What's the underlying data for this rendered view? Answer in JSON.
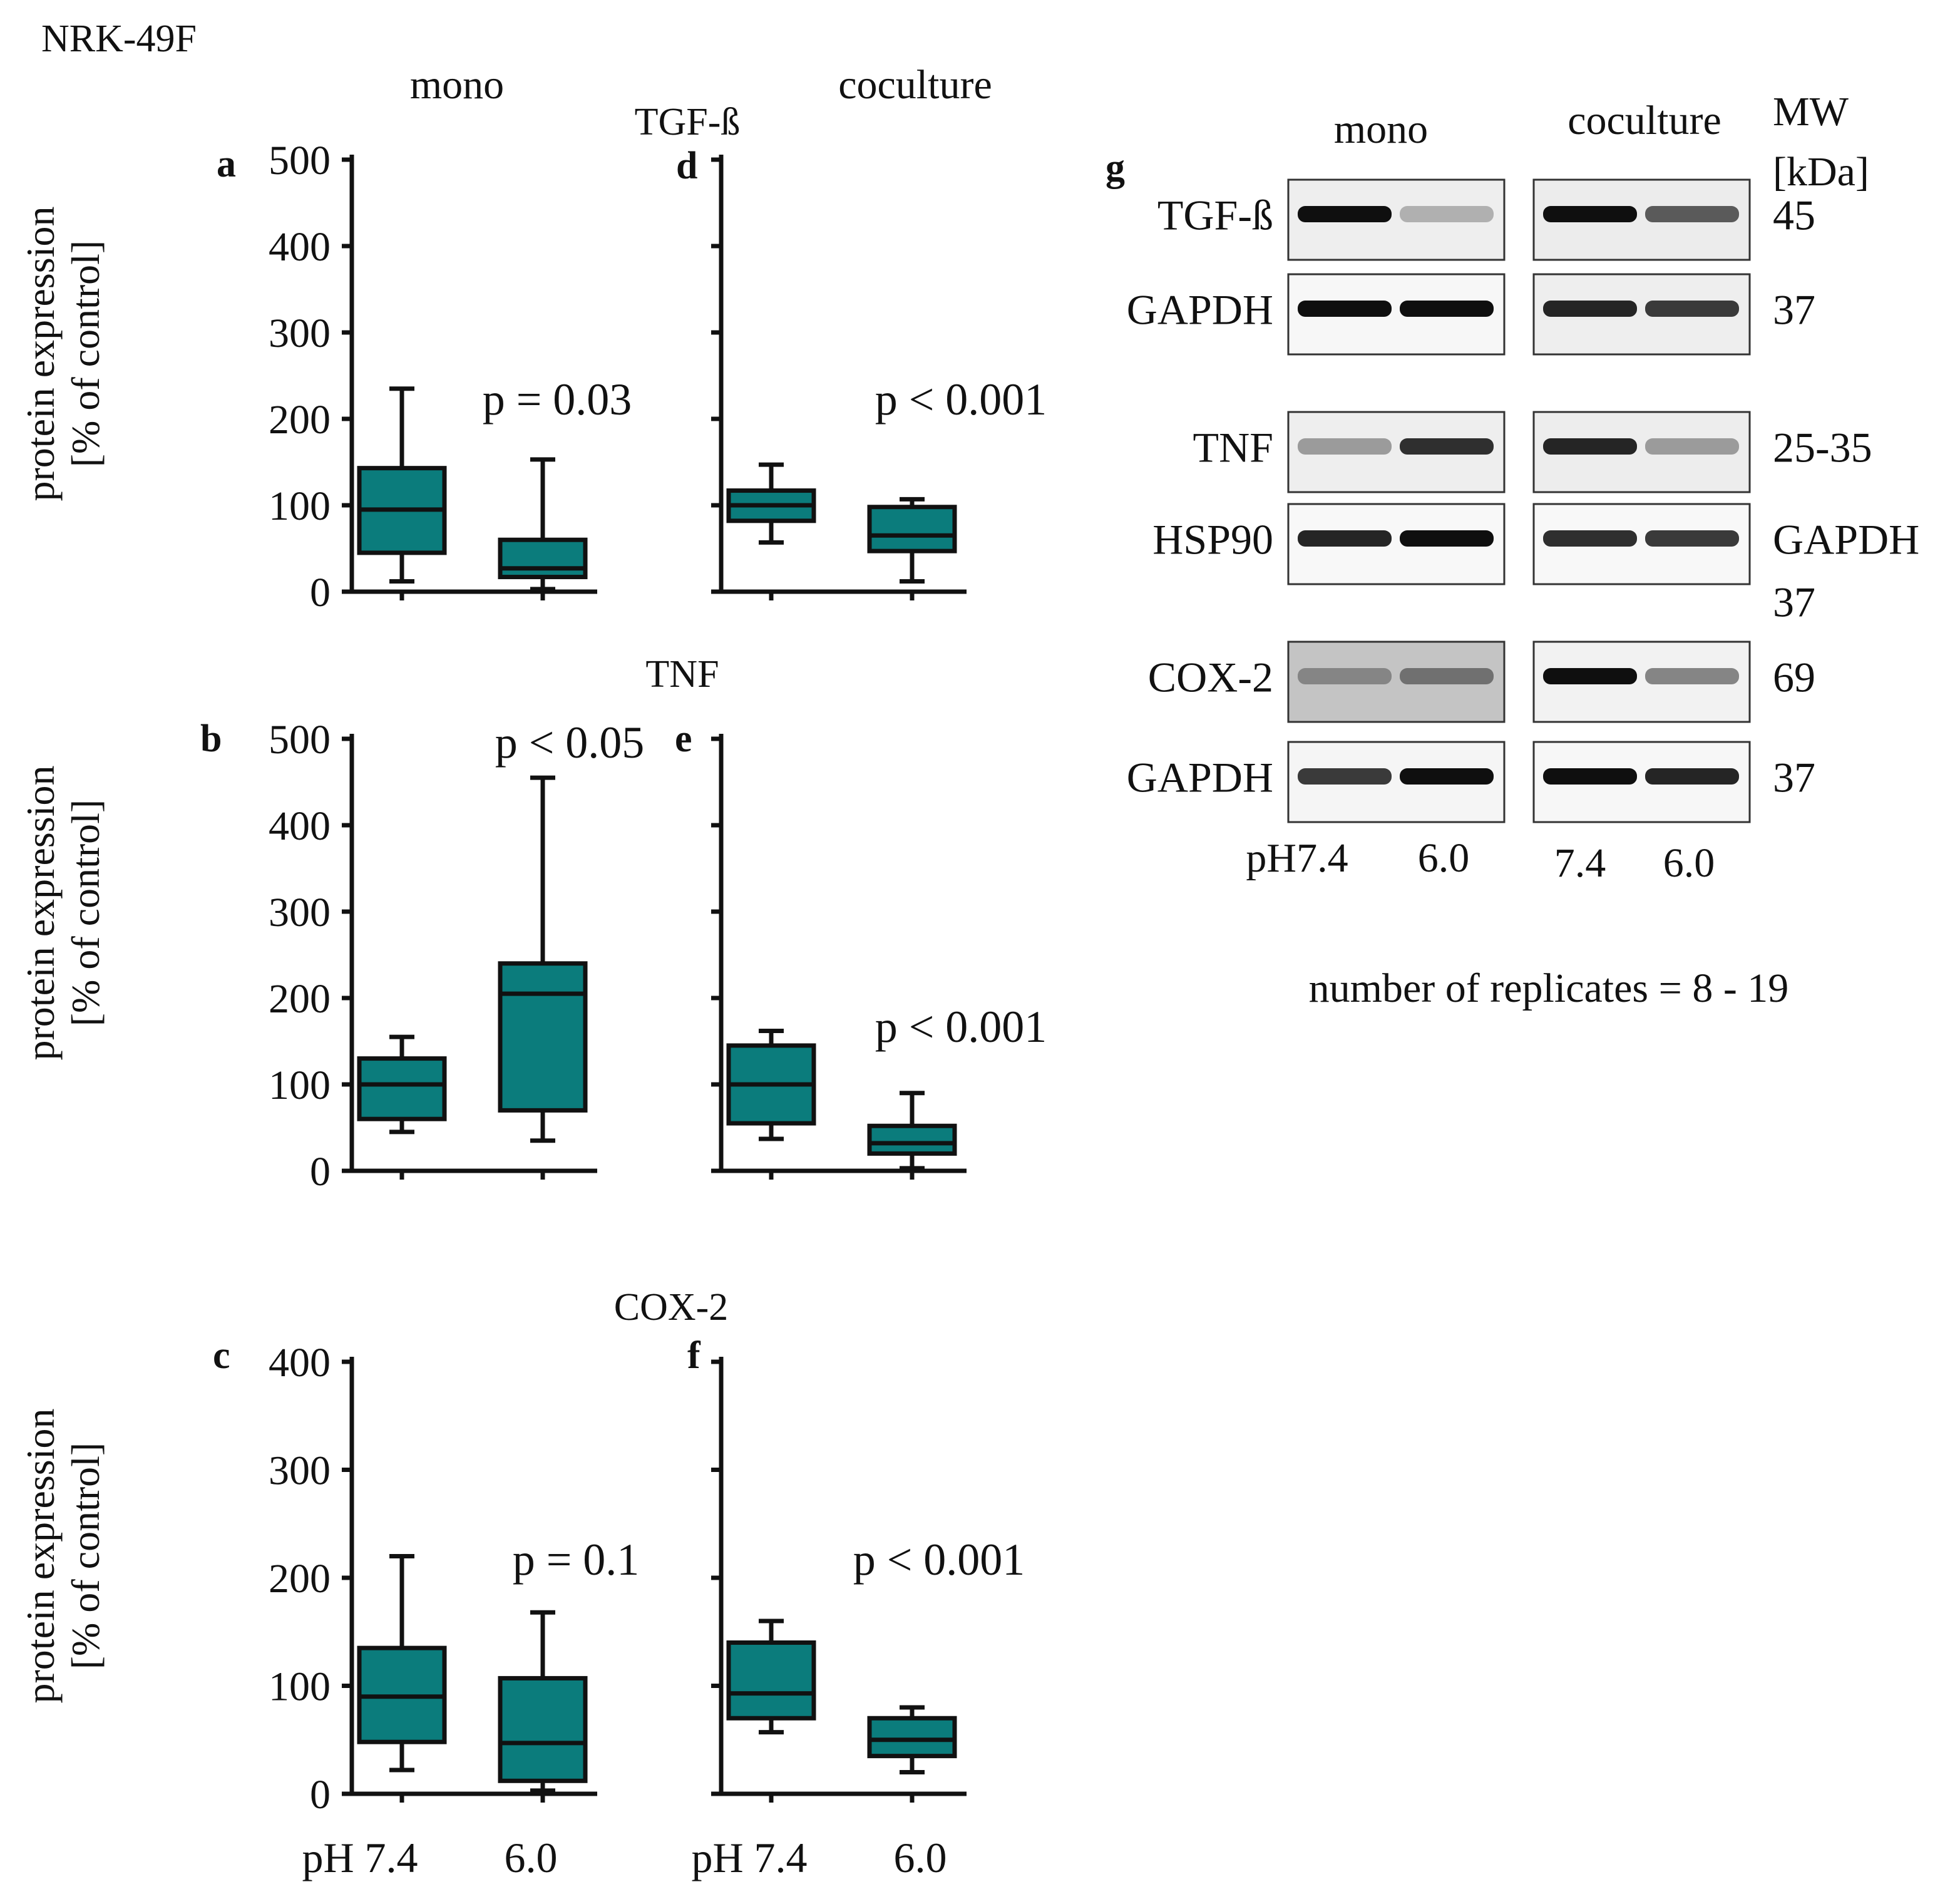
{
  "figure": {
    "cell_line": "NRK-49F",
    "col_mono": "mono",
    "col_coculture": "coculture",
    "y_axis_line1": "protein expression",
    "y_axis_line2": "[% of control]",
    "x_labels": {
      "ph": "pH 7.4",
      "acid": "6.0"
    },
    "footnote": "number of replicates = 8 - 19",
    "row_titles": [
      "TGF-ß",
      "TNF",
      "COX-2"
    ]
  },
  "colors": {
    "box_fill": "#0b7c7c",
    "line": "#111111"
  },
  "chart_data": [
    {
      "panel": "a",
      "type": "box",
      "title": "TGF-ß",
      "group": "mono",
      "categories": [
        "pH 7.4",
        "6.0"
      ],
      "ylim": [
        0,
        500
      ],
      "yticks": [
        "0",
        "100",
        "200",
        "300",
        "400",
        "500"
      ],
      "show_tick_labels": true,
      "p_value": "p = 0.03",
      "boxes": [
        {
          "min": 12,
          "q1": 45,
          "median": 95,
          "q3": 143,
          "max": 235
        },
        {
          "min": 3,
          "q1": 17,
          "median": 27,
          "q3": 60,
          "max": 153
        }
      ]
    },
    {
      "panel": "d",
      "type": "box",
      "title": "TGF-ß",
      "group": "coculture",
      "categories": [
        "pH 7.4",
        "6.0"
      ],
      "ylim": [
        0,
        500
      ],
      "yticks": [
        "0",
        "100",
        "200",
        "300",
        "400",
        "500"
      ],
      "show_tick_labels": false,
      "p_value": "p < 0.001",
      "boxes": [
        {
          "min": 57,
          "q1": 82,
          "median": 100,
          "q3": 117,
          "max": 147
        },
        {
          "min": 12,
          "q1": 47,
          "median": 65,
          "q3": 98,
          "max": 107
        }
      ]
    },
    {
      "panel": "b",
      "type": "box",
      "title": "TNF",
      "group": "mono",
      "categories": [
        "pH 7.4",
        "6.0"
      ],
      "ylim": [
        0,
        500
      ],
      "yticks": [
        "0",
        "100",
        "200",
        "300",
        "400",
        "500"
      ],
      "show_tick_labels": true,
      "p_value": "p < 0.05",
      "boxes": [
        {
          "min": 45,
          "q1": 60,
          "median": 100,
          "q3": 130,
          "max": 155
        },
        {
          "min": 35,
          "q1": 70,
          "median": 205,
          "q3": 240,
          "max": 455
        }
      ]
    },
    {
      "panel": "e",
      "type": "box",
      "title": "TNF",
      "group": "coculture",
      "categories": [
        "pH 7.4",
        "6.0"
      ],
      "ylim": [
        0,
        500
      ],
      "yticks": [
        "0",
        "100",
        "200",
        "300",
        "400",
        "500"
      ],
      "show_tick_labels": false,
      "p_value": "p < 0.001",
      "boxes": [
        {
          "min": 37,
          "q1": 55,
          "median": 100,
          "q3": 145,
          "max": 162
        },
        {
          "min": 3,
          "q1": 20,
          "median": 32,
          "q3": 52,
          "max": 90
        }
      ]
    },
    {
      "panel": "c",
      "type": "box",
      "title": "COX-2",
      "group": "mono",
      "categories": [
        "pH 7.4",
        "6.0"
      ],
      "ylim": [
        0,
        400
      ],
      "yticks": [
        "0",
        "100",
        "200",
        "300",
        "400"
      ],
      "show_tick_labels": true,
      "p_value": "p = 0.1",
      "boxes": [
        {
          "min": 22,
          "q1": 48,
          "median": 90,
          "q3": 135,
          "max": 220
        },
        {
          "min": 3,
          "q1": 12,
          "median": 47,
          "q3": 107,
          "max": 168
        }
      ]
    },
    {
      "panel": "f",
      "type": "box",
      "title": "COX-2",
      "group": "coculture",
      "categories": [
        "pH 7.4",
        "6.0"
      ],
      "ylim": [
        0,
        400
      ],
      "yticks": [
        "0",
        "100",
        "200",
        "300",
        "400"
      ],
      "show_tick_labels": false,
      "p_value": "p < 0.001",
      "boxes": [
        {
          "min": 57,
          "q1": 70,
          "median": 93,
          "q3": 140,
          "max": 160
        },
        {
          "min": 20,
          "q1": 35,
          "median": 50,
          "q3": 70,
          "max": 80
        }
      ]
    }
  ],
  "western_blot": {
    "panel": "g",
    "col_mono": "mono",
    "col_coculture": "coculture",
    "mw_title_1": "MW",
    "mw_title_2": "[kDa]",
    "lane_labels": {
      "mono_1": "pH7.4",
      "mono_2": "6.0",
      "co_1": "7.4",
      "co_2": "6.0"
    },
    "rows": [
      {
        "protein": "TGF-ß",
        "mw": "45",
        "mono": [
          1.0,
          0.25
        ],
        "co": [
          1.0,
          0.65
        ]
      },
      {
        "protein": "GAPDH",
        "mw": "37",
        "mono": [
          1.0,
          1.0
        ],
        "co": [
          0.9,
          0.8
        ]
      },
      {
        "protein": "TNF",
        "mw": "25-35",
        "mono": [
          0.35,
          0.85
        ],
        "co": [
          0.9,
          0.35
        ]
      },
      {
        "protein": "HSP90",
        "mw": "GAPDH",
        "mw_extra": "37",
        "mono": [
          0.9,
          1.0
        ],
        "co": [
          0.85,
          0.8
        ]
      },
      {
        "protein": "COX-2",
        "mw": "69",
        "mono": [
          0.45,
          0.55
        ],
        "co": [
          1.0,
          0.45
        ]
      },
      {
        "protein": "GAPDH",
        "mw": "37",
        "mono": [
          0.8,
          1.0
        ],
        "co": [
          1.0,
          0.9
        ]
      }
    ]
  }
}
